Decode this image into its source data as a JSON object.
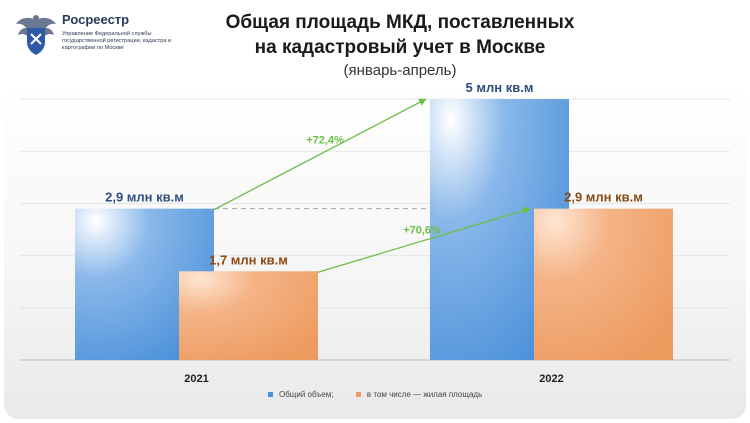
{
  "header": {
    "logo_name": "Росреестр",
    "logo_subtitle": "Управление Федеральной службы государственной регистрации, кадастра и картографии по Москве",
    "title_line1": "Общая площадь МКД, поставленных",
    "title_line2": "на кадастровый учет в Москве",
    "subtitle": "(январь-апрель)"
  },
  "colors": {
    "series_total": "#4a90d9",
    "series_residential": "#ed9a5e",
    "arrow": "#6cbf45",
    "label_total": "#2f4f7f",
    "label_residential": "#8a4a14"
  },
  "chart_data": {
    "type": "bar",
    "categories": [
      "2021",
      "2022"
    ],
    "series": [
      {
        "name": "Общий объем;",
        "values": [
          2.9,
          5
        ],
        "labels": [
          "2,9 млн кв.м",
          "5 млн кв.м"
        ]
      },
      {
        "name": "в том числе — жилая площадь",
        "values": [
          1.7,
          2.9
        ],
        "labels": [
          "1,7 млн кв.м",
          "2,9 млн кв.м"
        ]
      }
    ],
    "annotations": [
      {
        "text": "+72,4%",
        "series": 0
      },
      {
        "text": "+70,6%",
        "series": 1
      }
    ],
    "ylim": [
      0,
      5.25
    ],
    "grid": true,
    "legend_position": "bottom"
  }
}
